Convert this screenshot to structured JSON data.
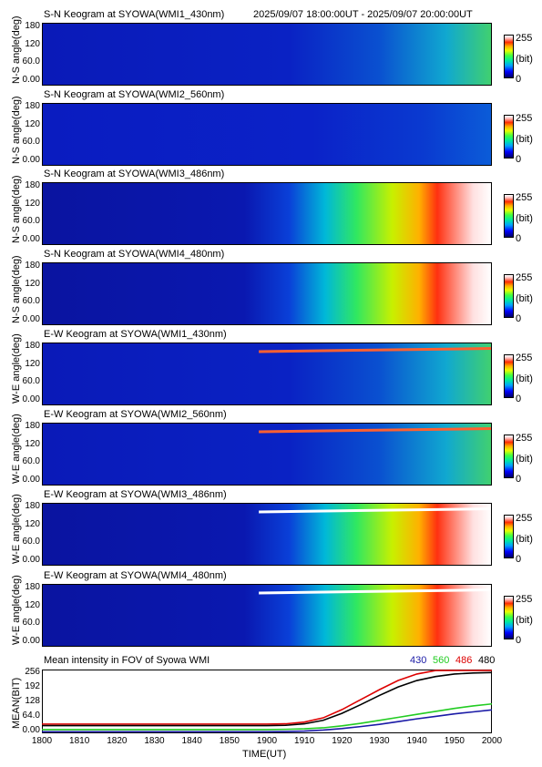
{
  "header": {
    "time_range": "2025/09/07 18:00:00UT - 2025/09/07 20:00:00UT"
  },
  "panels": [
    {
      "title": "S-N Keogram at SYOWA(WMI1_430nm)",
      "ylabel": "N-S angle(deg)",
      "brightness": "low",
      "arc": false
    },
    {
      "title": "S-N Keogram at SYOWA(WMI2_560nm)",
      "ylabel": "N-S angle(deg)",
      "brightness": "very-low",
      "arc": false
    },
    {
      "title": "S-N Keogram at SYOWA(WMI3_486nm)",
      "ylabel": "N-S angle(deg)",
      "brightness": "high",
      "arc": false
    },
    {
      "title": "S-N Keogram at SYOWA(WMI4_480nm)",
      "ylabel": "N-S angle(deg)",
      "brightness": "high",
      "arc": false
    },
    {
      "title": "E-W Keogram at SYOWA(WMI1_430nm)",
      "ylabel": "W-E angle(deg)",
      "brightness": "low",
      "arc": true
    },
    {
      "title": "E-W Keogram at SYOWA(WMI2_560nm)",
      "ylabel": "W-E angle(deg)",
      "brightness": "low",
      "arc": true
    },
    {
      "title": "E-W Keogram at SYOWA(WMI3_486nm)",
      "ylabel": "W-E angle(deg)",
      "brightness": "high",
      "arc": true
    },
    {
      "title": "E-W Keogram at SYOWA(WMI4_480nm)",
      "ylabel": "W-E angle(deg)",
      "brightness": "high",
      "arc": true
    }
  ],
  "keogram_ticks": [
    "180",
    "120",
    "60.0",
    "0.00"
  ],
  "colorbar": {
    "max_label": "255",
    "unit_label": "(bit)",
    "min_label": "0"
  },
  "chart_data": {
    "type": "line",
    "title": "Mean intensity in FOV of Syowa WMI",
    "xlabel": "TIME(UT)",
    "ylabel": "MEAN(BIT)",
    "x_ticks": [
      "1800",
      "1810",
      "1820",
      "1830",
      "1840",
      "1850",
      "1900",
      "1910",
      "1920",
      "1930",
      "1940",
      "1950",
      "2000"
    ],
    "y_ticks": [
      "256",
      "192",
      "128",
      "64.0",
      "0.00"
    ],
    "xlim": [
      0,
      120
    ],
    "ylim": [
      0,
      256
    ],
    "x": [
      0,
      20,
      40,
      60,
      65,
      70,
      75,
      80,
      85,
      90,
      95,
      100,
      105,
      110,
      115,
      120
    ],
    "series": [
      {
        "name": "430",
        "color": "#1a1aa6",
        "values": [
          6,
          6,
          6,
          6,
          7,
          9,
          13,
          19,
          27,
          36,
          47,
          58,
          68,
          78,
          86,
          94
        ]
      },
      {
        "name": "560",
        "color": "#22cc22",
        "values": [
          15,
          15,
          15,
          15,
          16,
          18,
          22,
          30,
          40,
          52,
          64,
          76,
          88,
          100,
          110,
          118
        ]
      },
      {
        "name": "486",
        "color": "#dd0000",
        "values": [
          37,
          37,
          37,
          37,
          38,
          45,
          62,
          95,
          135,
          175,
          212,
          238,
          252,
          256,
          256,
          256
        ]
      },
      {
        "name": "480",
        "color": "#000000",
        "values": [
          31,
          31,
          31,
          31,
          32,
          38,
          52,
          80,
          115,
          152,
          186,
          212,
          228,
          238,
          242,
          244
        ]
      }
    ]
  }
}
